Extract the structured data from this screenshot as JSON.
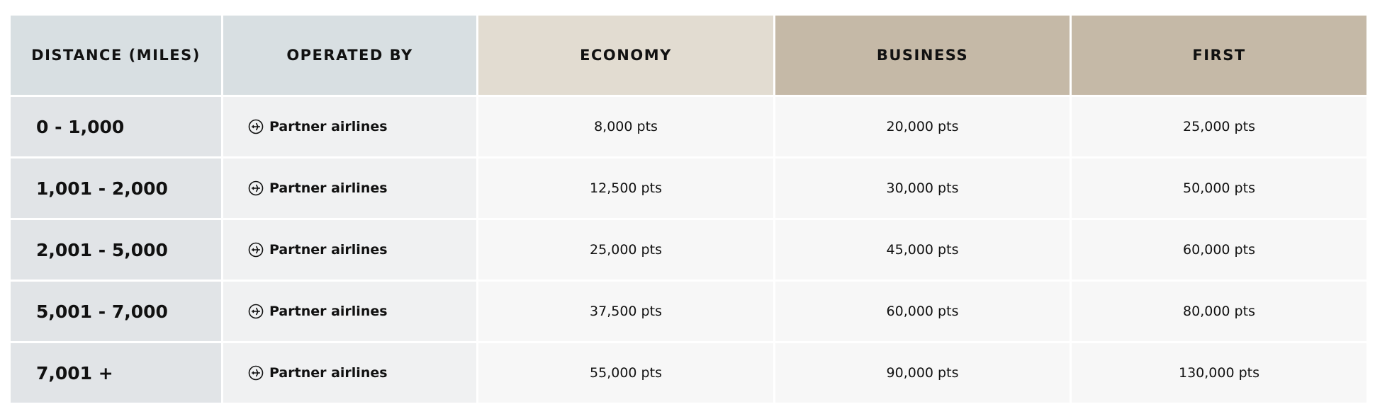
{
  "table": {
    "headers": [
      "DISTANCE (MILES)",
      "OPERATED BY",
      "ECONOMY",
      "BUSINESS",
      "FIRST"
    ],
    "rows": [
      [
        "0 - 1,000",
        "Partner airlines",
        "8,000 pts",
        "20,000 pts",
        "25,000 pts"
      ],
      [
        "1,001 - 2,000",
        "Partner airlines",
        "12,500 pts",
        "30,000 pts",
        "50,000 pts"
      ],
      [
        "2,001 - 5,000",
        "Partner airlines",
        "25,000 pts",
        "45,000 pts",
        "60,000 pts"
      ],
      [
        "5,001 - 7,000",
        "Partner airlines",
        "37,500 pts",
        "60,000 pts",
        "80,000 pts"
      ],
      [
        "7,001 +",
        "Partner airlines",
        "55,000 pts",
        "90,000 pts",
        "130,000 pts"
      ]
    ]
  }
}
